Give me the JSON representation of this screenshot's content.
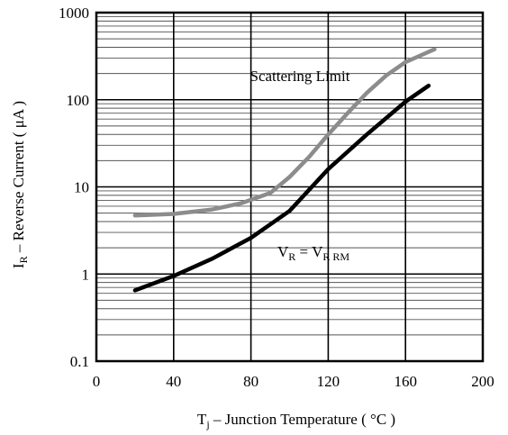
{
  "chart_data": {
    "type": "line",
    "x_scale": "linear",
    "y_scale": "log",
    "xlim": [
      0,
      200
    ],
    "ylim": [
      0.1,
      1000
    ],
    "x_ticks": [
      "0",
      "40",
      "80",
      "120",
      "160",
      "200"
    ],
    "y_ticks": [
      "0.1",
      "1",
      "10",
      "100",
      "1000"
    ],
    "xlabel": {
      "prefix": "T",
      "sub": "j",
      "rest": " – Junction Temperature ( °C )"
    },
    "ylabel": {
      "prefix": "I",
      "sub": "R",
      "rest": " – Reverse Current ( μA )"
    },
    "grid": true,
    "series": [
      {
        "label": "Scattering Limit",
        "color": "#8c8c8c",
        "points": [
          [
            20,
            4.7
          ],
          [
            40,
            4.9
          ],
          [
            60,
            5.5
          ],
          [
            75,
            6.5
          ],
          [
            90,
            8.5
          ],
          [
            100,
            13
          ],
          [
            110,
            22
          ],
          [
            120,
            40
          ],
          [
            130,
            70
          ],
          [
            140,
            120
          ],
          [
            150,
            190
          ],
          [
            160,
            270
          ],
          [
            175,
            380
          ]
        ]
      },
      {
        "label_parts": {
          "a": "V",
          "a_sub": "R",
          "eq": " = V",
          "b_sub": "R RM"
        },
        "color": "#000000",
        "points": [
          [
            20,
            0.65
          ],
          [
            40,
            0.95
          ],
          [
            60,
            1.5
          ],
          [
            80,
            2.6
          ],
          [
            100,
            5.3
          ],
          [
            120,
            16
          ],
          [
            140,
            40
          ],
          [
            160,
            95
          ],
          [
            172,
            145
          ]
        ]
      }
    ]
  }
}
